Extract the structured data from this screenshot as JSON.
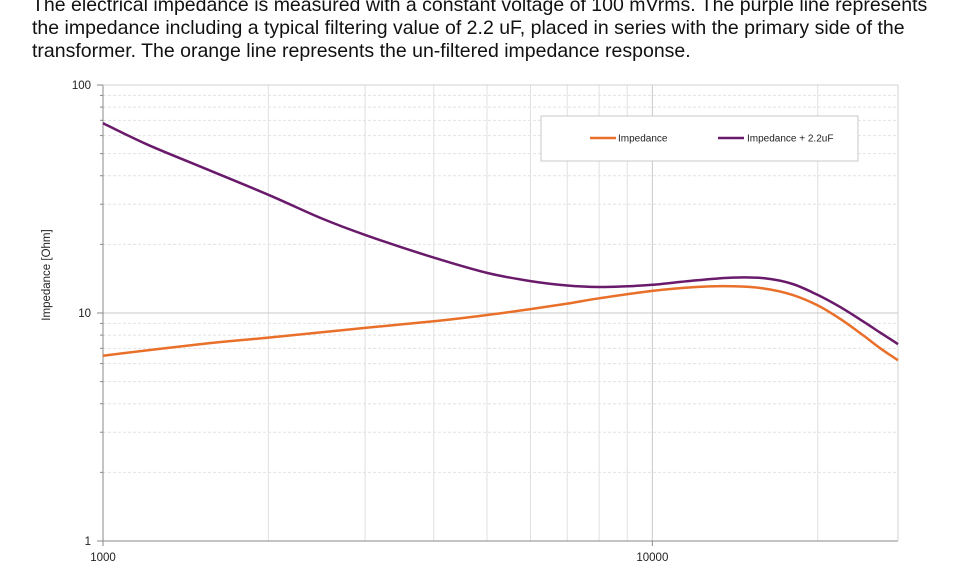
{
  "description": {
    "lines": [
      "The electrical impedance is measured with a constant voltage of 100 mVrms. The purple line represents",
      "the impedance including a typical filtering value of 2.2 uF, placed in series with the primary side of the",
      "transformer. The orange line represents the un-filtered impedance response."
    ]
  },
  "chart_data": {
    "type": "line",
    "xscale": "log",
    "yscale": "log",
    "xlim": [
      1000,
      28000
    ],
    "ylim": [
      1,
      100
    ],
    "xticks": [
      "1000",
      "10000"
    ],
    "yticks": [
      "1",
      "10",
      "100"
    ],
    "xlabel": "",
    "ylabel": "Impedance [Ohm]",
    "grid": true,
    "legend_position": "top-right",
    "series": [
      {
        "name": "Impedance",
        "color": "#e8702a",
        "x": [
          1000,
          1500,
          2000,
          3000,
          4000,
          5000,
          6000,
          7000,
          8000,
          10000,
          12000,
          14000,
          16000,
          18000,
          20000,
          22000,
          24000,
          26000,
          28000
        ],
        "y": [
          6.5,
          7.3,
          7.8,
          8.6,
          9.2,
          9.8,
          10.4,
          11.0,
          11.6,
          12.5,
          13.0,
          13.1,
          12.8,
          12.0,
          10.8,
          9.4,
          8.1,
          7.0,
          6.2
        ]
      },
      {
        "name": "Impedance + 2.2uF",
        "color": "#6a1a6a",
        "x": [
          1000,
          1200,
          1500,
          2000,
          2500,
          3000,
          4000,
          5000,
          6000,
          7000,
          8000,
          9000,
          10000,
          12000,
          14000,
          16000,
          18000,
          20000,
          22000,
          24000,
          26000,
          28000
        ],
        "y": [
          68,
          55,
          44,
          33,
          26,
          22,
          17.5,
          15,
          13.8,
          13.2,
          13.0,
          13.1,
          13.3,
          13.9,
          14.3,
          14.2,
          13.4,
          12.0,
          10.6,
          9.3,
          8.2,
          7.3
        ]
      }
    ]
  }
}
